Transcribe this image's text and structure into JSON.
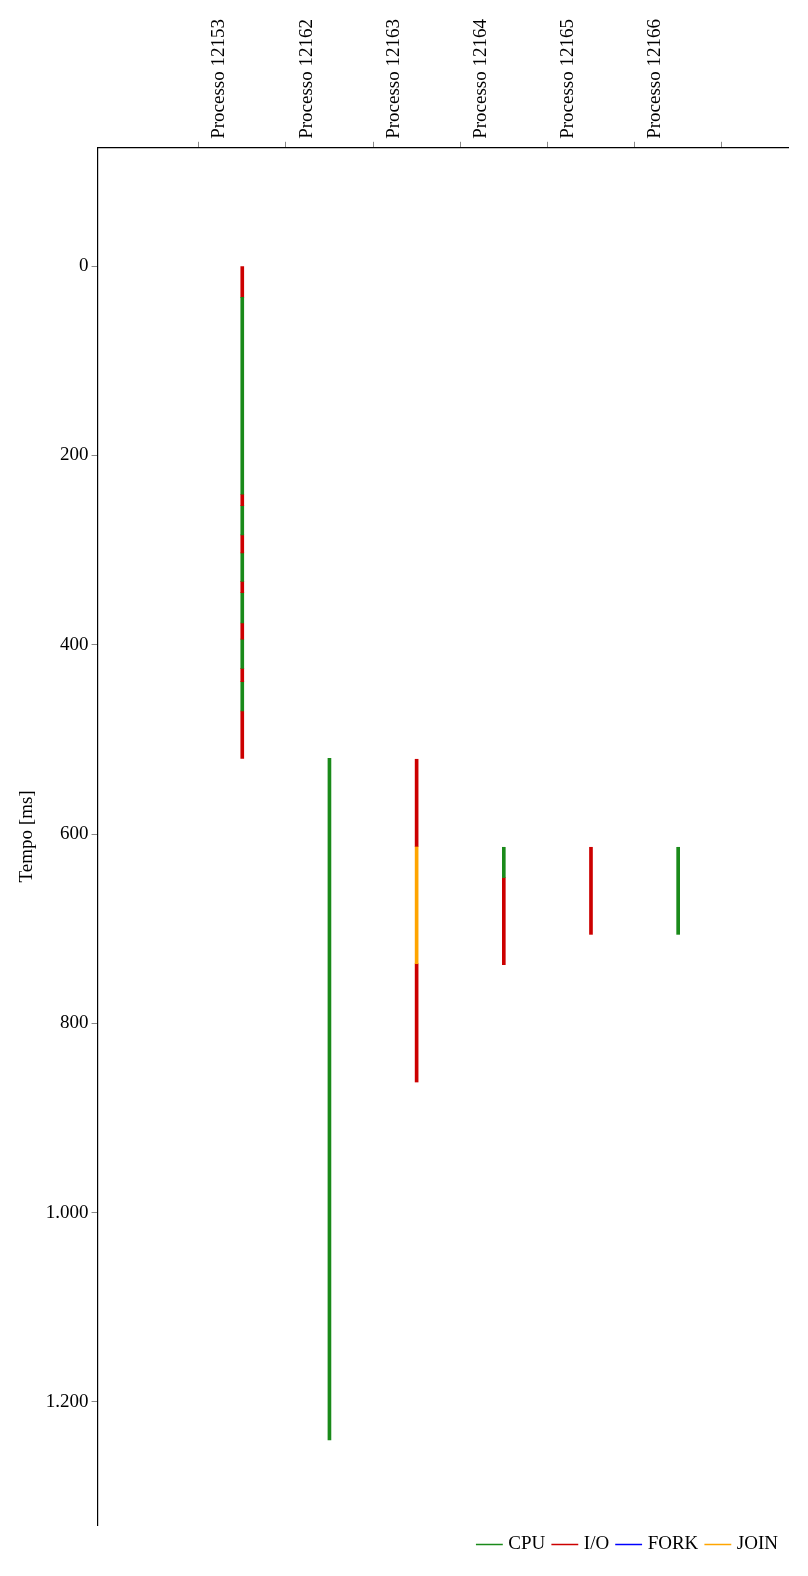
{
  "chart_data": {
    "type": "bar",
    "ylabel": "Tempo [ms]",
    "categories": [
      "Processo 12153",
      "Processo 12162",
      "Processo 12163",
      "Processo 12164",
      "Processo 12165",
      "Processo 12166"
    ],
    "ylim": [
      1330,
      -125
    ],
    "yticks": [
      0,
      200,
      400,
      600,
      800,
      {
        "value": 1000,
        "label": "1.000"
      },
      {
        "value": 1200,
        "label": "1.200"
      }
    ],
    "legend": "bottom right",
    "series": [
      {
        "name": "CPU",
        "color": "#1a8a1a",
        "values": [
          208,
          720,
          null,
          32,
          null,
          92
        ],
        "base": [
          33,
          520,
          null,
          614,
          null,
          614
        ]
      },
      {
        "name": "I/O",
        "color": "#cc0000",
        "values": [
          33,
          null,
          92,
          92,
          92,
          null
        ],
        "base": [
          0,
          null,
          521,
          646,
          614,
          null
        ]
      },
      {
        "name": "FORK",
        "color": "#0000ff",
        "values": [
          null,
          null,
          null,
          null,
          null,
          null
        ],
        "base": [
          null,
          null,
          null,
          null,
          null,
          null
        ]
      },
      {
        "name": "JOIN",
        "color": "#ffa500",
        "values": [
          null,
          null,
          124,
          null,
          null,
          null
        ],
        "base": [
          null,
          null,
          613,
          null,
          null,
          null
        ]
      },
      {
        "color": "#cc0000",
        "values": [
          12,
          null,
          125,
          null,
          null,
          null
        ],
        "base": [
          241,
          null,
          737,
          null,
          null,
          null
        ]
      },
      {
        "color": "#1a8a1a",
        "values": [
          31,
          null,
          null,
          null,
          null,
          null
        ],
        "base": [
          253,
          null,
          null,
          null,
          null,
          null
        ]
      },
      {
        "color": "#cc0000",
        "values": [
          19,
          null,
          null,
          null,
          null,
          null
        ],
        "base": [
          284,
          null,
          null,
          null,
          null,
          null
        ]
      },
      {
        "color": "#1a8a1a",
        "values": [
          30,
          null,
          null,
          null,
          null,
          null
        ],
        "base": [
          303,
          null,
          null,
          null,
          null,
          null
        ]
      },
      {
        "color": "#cc0000",
        "values": [
          12,
          null,
          null,
          null,
          null,
          null
        ],
        "base": [
          333,
          null,
          null,
          null,
          null,
          null
        ]
      },
      {
        "color": "#1a8a1a",
        "values": [
          32,
          null,
          null,
          null,
          null,
          null
        ],
        "base": [
          345,
          null,
          null,
          null,
          null,
          null
        ]
      },
      {
        "color": "#cc0000",
        "values": [
          17,
          null,
          null,
          null,
          null,
          null
        ],
        "base": [
          377,
          null,
          null,
          null,
          null,
          null
        ]
      },
      {
        "color": "#1a8a1a",
        "values": [
          31,
          null,
          null,
          null,
          null,
          null
        ],
        "base": [
          394,
          null,
          null,
          null,
          null,
          null
        ]
      },
      {
        "color": "#cc0000",
        "values": [
          14,
          null,
          null,
          null,
          null,
          null
        ],
        "base": [
          425,
          null,
          null,
          null,
          null,
          null
        ]
      },
      {
        "color": "#1a8a1a",
        "values": [
          31,
          null,
          null,
          null,
          null,
          null
        ],
        "base": [
          439,
          null,
          null,
          null,
          null,
          null
        ]
      },
      {
        "color": "#cc0000",
        "values": [
          50,
          null,
          null,
          null,
          null,
          null
        ],
        "base": [
          470,
          null,
          null,
          null,
          null,
          null
        ]
      }
    ]
  }
}
